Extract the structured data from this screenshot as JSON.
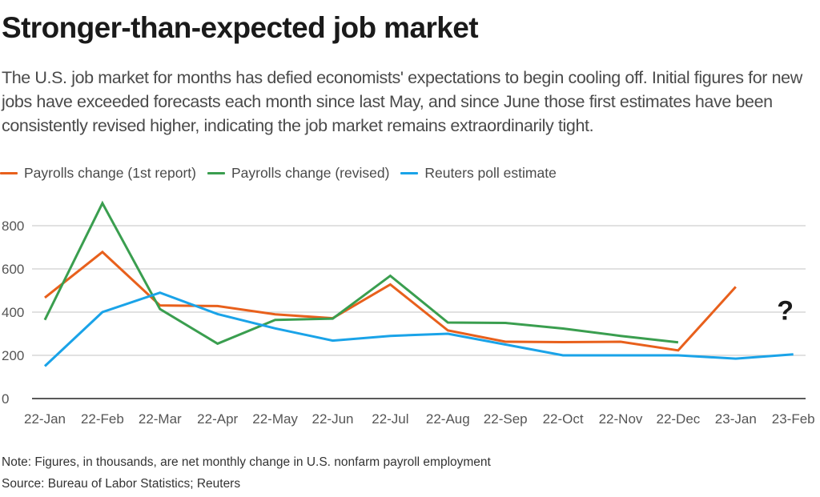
{
  "header": {
    "title": "Stronger-than-expected job market",
    "subtitle": "The U.S. job market for months has defied economists' expectations to begin cooling off. Initial figures for new jobs have exceeded forecasts each month since last May, and since June those first estimates have been consistently revised higher, indicating the job market remains extraordinarily tight."
  },
  "footer": {
    "note": "Note: Figures, in thousands, are net monthly change in U.S. nonfarm payroll employment",
    "source": "Source: Bureau of Labor Statistics; Reuters"
  },
  "chart_data": {
    "type": "line",
    "title": "Stronger-than-expected job market",
    "xlabel": "",
    "ylabel": "",
    "ylim": [
      0,
      900
    ],
    "yticks": [
      0,
      200,
      400,
      600,
      800
    ],
    "grid": true,
    "legend_position": "top-left",
    "categories": [
      "22-Jan",
      "22-Feb",
      "22-Mar",
      "22-Apr",
      "22-May",
      "22-Jun",
      "22-Jul",
      "22-Aug",
      "22-Sep",
      "22-Oct",
      "22-Nov",
      "22-Dec",
      "23-Jan",
      "23-Feb"
    ],
    "series": [
      {
        "name": "Payrolls change (1st report)",
        "color": "#e8601c",
        "values": [
          467,
          678,
          431,
          428,
          390,
          372,
          528,
          315,
          263,
          261,
          263,
          223,
          517,
          null
        ]
      },
      {
        "name": "Payrolls change (revised)",
        "color": "#3a9e4f",
        "values": [
          364,
          904,
          414,
          254,
          364,
          370,
          568,
          352,
          350,
          324,
          290,
          260,
          null,
          null
        ]
      },
      {
        "name": "Reuters poll estimate",
        "color": "#1aa3e8",
        "values": [
          150,
          400,
          490,
          391,
          325,
          268,
          290,
          300,
          250,
          200,
          200,
          200,
          185,
          205
        ]
      }
    ],
    "annotations": [
      {
        "text": "?",
        "x": "23-Feb",
        "y": 410
      }
    ]
  }
}
